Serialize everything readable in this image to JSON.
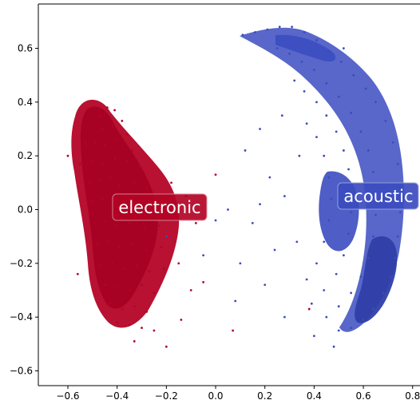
{
  "chart_data": {
    "type": "scatter",
    "title": "",
    "xlabel": "",
    "ylabel": "",
    "xlim": [
      -0.72,
      0.83
    ],
    "ylim": [
      -0.655,
      0.765
    ],
    "xticks": [
      {
        "value": -0.6,
        "label": "−0.6"
      },
      {
        "value": -0.4,
        "label": "−0.4"
      },
      {
        "value": -0.2,
        "label": "−0.2"
      },
      {
        "value": 0.0,
        "label": "0.0"
      },
      {
        "value": 0.2,
        "label": "0.2"
      },
      {
        "value": 0.4,
        "label": "0.4"
      },
      {
        "value": 0.6,
        "label": "0.6"
      },
      {
        "value": 0.8,
        "label": "0.8"
      }
    ],
    "yticks": [
      {
        "value": 0.6,
        "label": "0.6"
      },
      {
        "value": 0.4,
        "label": "0.4"
      },
      {
        "value": 0.2,
        "label": "0.2"
      },
      {
        "value": 0.0,
        "label": "0.0"
      },
      {
        "value": -0.2,
        "label": "−0.2"
      },
      {
        "value": -0.4,
        "label": "−0.4"
      },
      {
        "value": -0.6,
        "label": "−0.6"
      }
    ],
    "grid": false,
    "legend": "none",
    "annotations": [
      {
        "text": "electronic",
        "x": -0.26,
        "y": 0.015,
        "color": "#b40426"
      },
      {
        "text": "acoustic",
        "x": 0.68,
        "y": 0.055,
        "color": "#3b4cc0"
      }
    ],
    "series": [
      {
        "color": "#b40426",
        "points": [
          [
            -0.47,
            0.35
          ],
          [
            -0.44,
            0.38
          ],
          [
            -0.41,
            0.37
          ],
          [
            -0.38,
            0.33
          ],
          [
            -0.46,
            0.3
          ],
          [
            -0.42,
            0.31
          ],
          [
            -0.36,
            0.28
          ],
          [
            -0.49,
            0.25
          ],
          [
            -0.45,
            0.24
          ],
          [
            -0.4,
            0.26
          ],
          [
            -0.34,
            0.22
          ],
          [
            -0.5,
            0.18
          ],
          [
            -0.46,
            0.17
          ],
          [
            -0.41,
            0.19
          ],
          [
            -0.36,
            0.18
          ],
          [
            -0.31,
            0.16
          ],
          [
            -0.51,
            0.1
          ],
          [
            -0.47,
            0.11
          ],
          [
            -0.43,
            0.12
          ],
          [
            -0.39,
            0.09
          ],
          [
            -0.33,
            0.1
          ],
          [
            -0.28,
            0.08
          ],
          [
            -0.5,
            0.03
          ],
          [
            -0.46,
            0.04
          ],
          [
            -0.42,
            0.02
          ],
          [
            -0.37,
            0.03
          ],
          [
            -0.31,
            0.01
          ],
          [
            -0.25,
            0.0
          ],
          [
            -0.49,
            -0.05
          ],
          [
            -0.45,
            -0.04
          ],
          [
            -0.4,
            -0.06
          ],
          [
            -0.35,
            -0.05
          ],
          [
            -0.29,
            -0.07
          ],
          [
            -0.23,
            -0.06
          ],
          [
            -0.48,
            -0.13
          ],
          [
            -0.44,
            -0.12
          ],
          [
            -0.39,
            -0.14
          ],
          [
            -0.34,
            -0.13
          ],
          [
            -0.28,
            -0.15
          ],
          [
            -0.22,
            -0.14
          ],
          [
            -0.47,
            -0.21
          ],
          [
            -0.42,
            -0.2
          ],
          [
            -0.37,
            -0.22
          ],
          [
            -0.32,
            -0.21
          ],
          [
            -0.27,
            -0.23
          ],
          [
            -0.21,
            -0.22
          ],
          [
            -0.45,
            -0.28
          ],
          [
            -0.4,
            -0.29
          ],
          [
            -0.35,
            -0.3
          ],
          [
            -0.3,
            -0.28
          ],
          [
            -0.25,
            -0.31
          ],
          [
            -0.43,
            -0.35
          ],
          [
            -0.38,
            -0.37
          ],
          [
            -0.33,
            -0.36
          ],
          [
            -0.28,
            -0.38
          ],
          [
            -0.4,
            -0.42
          ],
          [
            -0.35,
            -0.43
          ],
          [
            -0.3,
            -0.44
          ],
          [
            -0.33,
            -0.49
          ],
          [
            -0.2,
            -0.51
          ],
          [
            -0.55,
            0.17
          ],
          [
            -0.56,
            -0.24
          ],
          [
            -0.53,
            0.25
          ],
          [
            -0.18,
            0.1
          ],
          [
            -0.15,
            -0.2
          ],
          [
            -0.1,
            -0.3
          ],
          [
            -0.14,
            -0.41
          ],
          [
            -0.05,
            -0.27
          ],
          [
            0.0,
            0.13
          ],
          [
            -0.08,
            -0.05
          ],
          [
            -0.6,
            0.2
          ],
          [
            -0.25,
            -0.45
          ],
          [
            -0.12,
            0.05
          ],
          [
            0.07,
            -0.45
          ],
          [
            0.38,
            -0.37
          ]
        ]
      },
      {
        "color": "#3b4cc0",
        "points": [
          [
            0.11,
            0.65
          ],
          [
            0.16,
            0.66
          ],
          [
            0.21,
            0.67
          ],
          [
            0.26,
            0.68
          ],
          [
            0.31,
            0.68
          ],
          [
            0.36,
            0.66
          ],
          [
            0.41,
            0.63
          ],
          [
            0.46,
            0.59
          ],
          [
            0.51,
            0.55
          ],
          [
            0.56,
            0.5
          ],
          [
            0.61,
            0.45
          ],
          [
            0.65,
            0.4
          ],
          [
            0.69,
            0.33
          ],
          [
            0.72,
            0.25
          ],
          [
            0.74,
            0.17
          ],
          [
            0.75,
            0.08
          ],
          [
            0.75,
            -0.01
          ],
          [
            0.74,
            -0.1
          ],
          [
            0.73,
            -0.18
          ],
          [
            0.71,
            -0.25
          ],
          [
            0.68,
            -0.31
          ],
          [
            0.64,
            -0.37
          ],
          [
            0.6,
            -0.41
          ],
          [
            0.55,
            -0.44
          ],
          [
            0.5,
            -0.45
          ],
          [
            0.25,
            0.6
          ],
          [
            0.3,
            0.58
          ],
          [
            0.35,
            0.55
          ],
          [
            0.4,
            0.52
          ],
          [
            0.45,
            0.47
          ],
          [
            0.5,
            0.42
          ],
          [
            0.55,
            0.36
          ],
          [
            0.59,
            0.29
          ],
          [
            0.62,
            0.22
          ],
          [
            0.64,
            0.14
          ],
          [
            0.65,
            0.06
          ],
          [
            0.65,
            -0.02
          ],
          [
            0.64,
            -0.1
          ],
          [
            0.62,
            -0.18
          ],
          [
            0.59,
            -0.25
          ],
          [
            0.55,
            -0.31
          ],
          [
            0.5,
            -0.36
          ],
          [
            0.45,
            -0.4
          ],
          [
            0.32,
            0.48
          ],
          [
            0.36,
            0.44
          ],
          [
            0.41,
            0.4
          ],
          [
            0.45,
            0.35
          ],
          [
            0.49,
            0.29
          ],
          [
            0.52,
            0.22
          ],
          [
            0.54,
            0.15
          ],
          [
            0.55,
            0.07
          ],
          [
            0.55,
            -0.01
          ],
          [
            0.54,
            -0.09
          ],
          [
            0.52,
            -0.17
          ],
          [
            0.49,
            -0.24
          ],
          [
            0.44,
            -0.3
          ],
          [
            0.39,
            -0.35
          ],
          [
            0.37,
            0.32
          ],
          [
            0.41,
            0.27
          ],
          [
            0.44,
            0.2
          ],
          [
            0.46,
            0.12
          ],
          [
            0.47,
            0.04
          ],
          [
            0.46,
            -0.04
          ],
          [
            0.44,
            -0.12
          ],
          [
            0.41,
            -0.2
          ],
          [
            0.37,
            -0.26
          ],
          [
            0.27,
            0.35
          ],
          [
            0.22,
            0.12
          ],
          [
            0.15,
            -0.05
          ],
          [
            0.05,
            0.0
          ],
          [
            0.1,
            -0.2
          ],
          [
            0.2,
            -0.28
          ],
          [
            0.28,
            -0.4
          ],
          [
            0.33,
            -0.12
          ],
          [
            0.18,
            0.02
          ],
          [
            0.08,
            -0.34
          ],
          [
            -0.05,
            -0.17
          ],
          [
            0.0,
            -0.04
          ],
          [
            0.4,
            -0.47
          ],
          [
            0.48,
            -0.51
          ],
          [
            0.52,
            0.6
          ],
          [
            0.18,
            0.3
          ],
          [
            0.24,
            -0.15
          ],
          [
            0.12,
            0.22
          ],
          [
            0.28,
            0.05
          ],
          [
            -0.2,
            -0.1
          ],
          [
            0.34,
            0.2
          ]
        ]
      }
    ]
  }
}
